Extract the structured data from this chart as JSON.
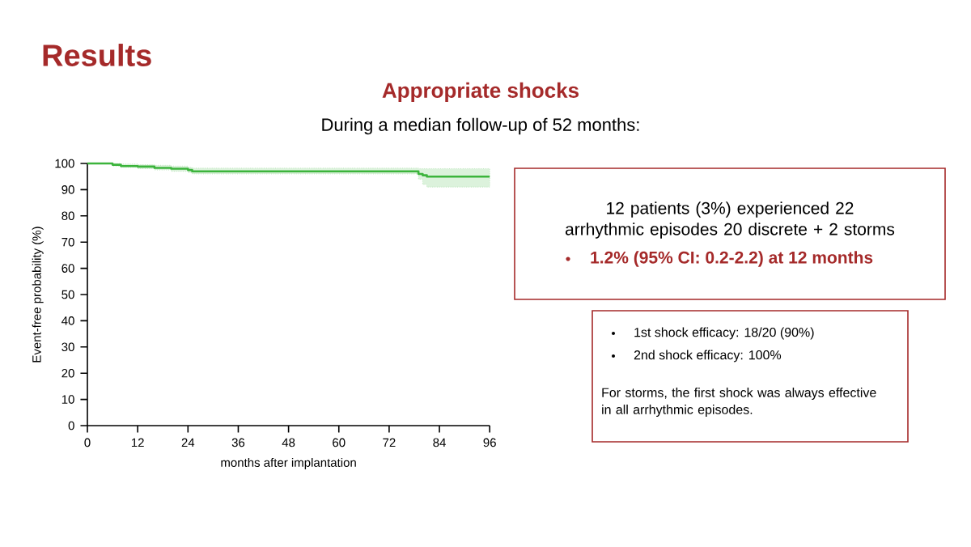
{
  "chart_data": {
    "type": "step",
    "title": "Results",
    "subtitle": "Appropriate shocks",
    "xlabel": "months after implantation",
    "ylabel": "Event-free probability (%)",
    "x": [
      0,
      6,
      8,
      12,
      16,
      20,
      24,
      25,
      79,
      80,
      81,
      96
    ],
    "series": [
      {
        "color": "#3cb43c",
        "values": [
          100,
          99.5,
          99,
          98.8,
          98.3,
          98,
          97.5,
          97,
          96,
          95.5,
          95,
          95
        ],
        "lower": [
          100,
          99,
          98.5,
          98,
          97.5,
          97,
          96.5,
          96,
          94,
          92,
          91,
          91
        ],
        "upper": [
          100,
          100,
          99.8,
          99.5,
          99.3,
          99,
          98.5,
          98.2,
          98,
          98,
          98,
          98
        ]
      }
    ],
    "xlim": [
      0,
      96
    ],
    "xticks": [
      0,
      12,
      24,
      36,
      48,
      60,
      72,
      84,
      96
    ],
    "ylim": [
      0,
      100
    ],
    "yticks": [
      0,
      10,
      20,
      30,
      40,
      50,
      60,
      70,
      80,
      90,
      100
    ],
    "annotations": [
      "During a median follow-up of 52 months:",
      "12 patients (3%) experienced 22 arrhythmic episodes 20 discrete + 2 storms",
      "**1.2% (95% CI: 0.2-2.2) at 12 months**",
      "1st shock efficacy: 18/20 (90%)",
      "2nd shock efficacy: 100%",
      "For storms, the first shock was always effective in all arrhythmic episodes."
    ]
  }
}
